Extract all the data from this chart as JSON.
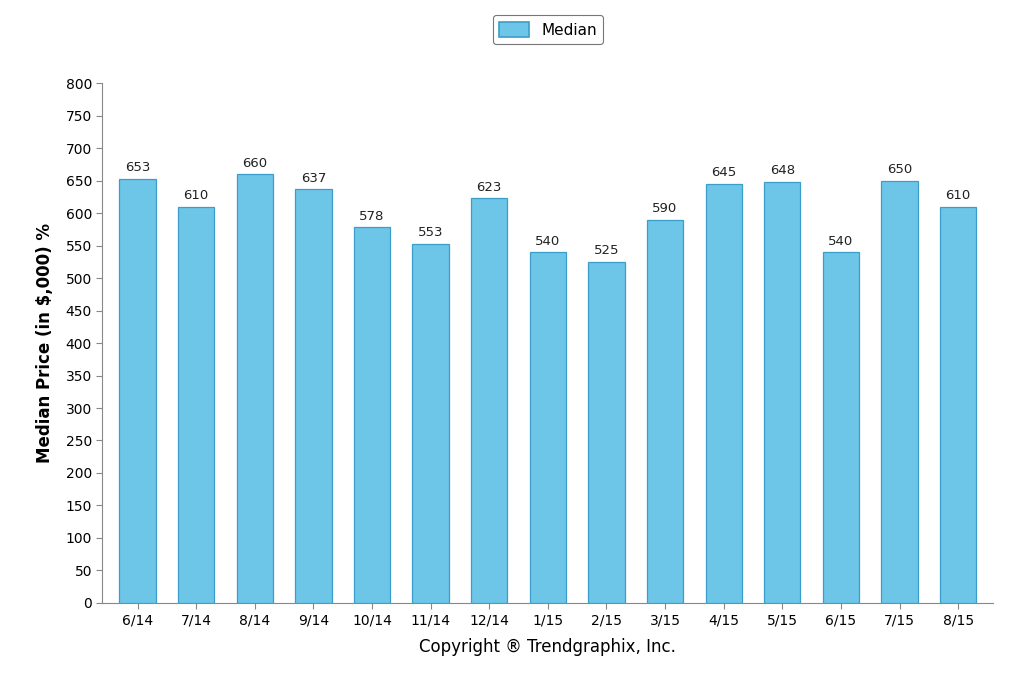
{
  "categories": [
    "6/14",
    "7/14",
    "8/14",
    "9/14",
    "10/14",
    "11/14",
    "12/14",
    "1/15",
    "2/15",
    "3/15",
    "4/15",
    "5/15",
    "6/15",
    "7/15",
    "8/15"
  ],
  "values": [
    653,
    610,
    660,
    637,
    578,
    553,
    623,
    540,
    525,
    590,
    645,
    648,
    540,
    650,
    610
  ],
  "bar_color": "#6DC6E8",
  "bar_edge_color": "#3A9EC8",
  "ylabel": "Median Price (in $,000) %",
  "xlabel": "Copyright ® Trendgraphix, Inc.",
  "ylim": [
    0,
    800
  ],
  "yticks": [
    0,
    50,
    100,
    150,
    200,
    250,
    300,
    350,
    400,
    450,
    500,
    550,
    600,
    650,
    700,
    750,
    800
  ],
  "legend_label": "Median",
  "legend_box_color": "#6DC6E8",
  "legend_box_edge_color": "#3A9EC8",
  "bar_label_fontsize": 9.5,
  "bar_label_color": "#222222",
  "axis_label_fontsize": 12,
  "tick_fontsize": 10,
  "background_color": "#FFFFFF",
  "bar_width": 0.62
}
